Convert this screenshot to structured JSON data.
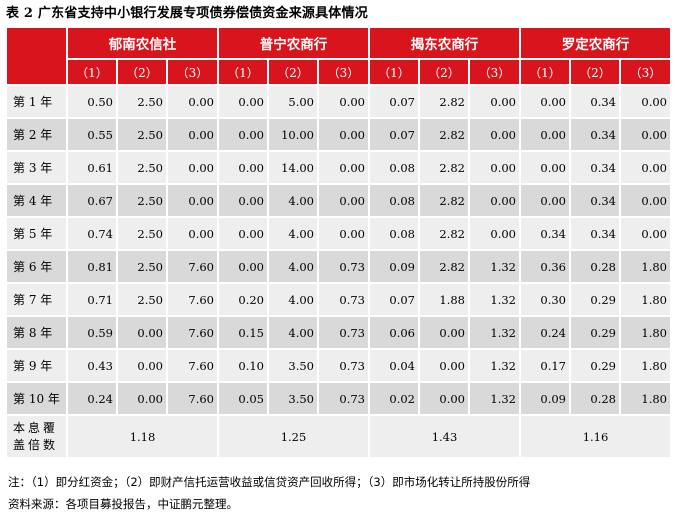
{
  "title": "表 2 广东省支持中小银行发展专项债券偿债资金来源具体情况",
  "banks": [
    "郁南农信社",
    "普宁农商行",
    "揭东农商行",
    "罗定农商行"
  ],
  "sub_headers": [
    "（1）",
    "（2）",
    "（3）"
  ],
  "rows": [
    {
      "label": "第 1 年",
      "values": [
        "0.50",
        "2.50",
        "0.00",
        "0.00",
        "5.00",
        "0.00",
        "0.07",
        "2.82",
        "0.00",
        "0.00",
        "0.34",
        "0.00"
      ]
    },
    {
      "label": "第 2 年",
      "values": [
        "0.55",
        "2.50",
        "0.00",
        "0.00",
        "10.00",
        "0.00",
        "0.07",
        "2.82",
        "0.00",
        "0.00",
        "0.34",
        "0.00"
      ]
    },
    {
      "label": "第 3 年",
      "values": [
        "0.61",
        "2.50",
        "0.00",
        "0.00",
        "14.00",
        "0.00",
        "0.08",
        "2.82",
        "0.00",
        "0.00",
        "0.34",
        "0.00"
      ]
    },
    {
      "label": "第 4 年",
      "values": [
        "0.67",
        "2.50",
        "0.00",
        "0.00",
        "4.00",
        "0.00",
        "0.08",
        "2.82",
        "0.00",
        "0.00",
        "0.34",
        "0.00"
      ]
    },
    {
      "label": "第 5 年",
      "values": [
        "0.74",
        "2.50",
        "0.00",
        "0.00",
        "4.00",
        "0.00",
        "0.08",
        "2.82",
        "0.00",
        "0.34",
        "0.34",
        "0.00"
      ]
    },
    {
      "label": "第 6 年",
      "values": [
        "0.81",
        "2.50",
        "7.60",
        "0.00",
        "4.00",
        "0.73",
        "0.09",
        "2.82",
        "1.32",
        "0.36",
        "0.28",
        "1.80"
      ]
    },
    {
      "label": "第 7 年",
      "values": [
        "0.71",
        "2.50",
        "7.60",
        "0.20",
        "4.00",
        "0.73",
        "0.07",
        "1.88",
        "1.32",
        "0.30",
        "0.29",
        "1.80"
      ]
    },
    {
      "label": "第 8 年",
      "values": [
        "0.59",
        "0.00",
        "7.60",
        "0.15",
        "4.00",
        "0.73",
        "0.06",
        "0.00",
        "1.32",
        "0.24",
        "0.29",
        "1.80"
      ]
    },
    {
      "label": "第 9 年",
      "values": [
        "0.43",
        "0.00",
        "7.60",
        "0.10",
        "3.50",
        "0.73",
        "0.04",
        "0.00",
        "1.32",
        "0.17",
        "0.29",
        "1.80"
      ]
    },
    {
      "label": "第 10 年",
      "values": [
        "0.24",
        "0.00",
        "7.60",
        "0.05",
        "3.50",
        "0.73",
        "0.02",
        "0.00",
        "1.32",
        "0.09",
        "0.28",
        "1.80"
      ]
    }
  ],
  "coverage": {
    "label": "本息覆盖倍数",
    "values": [
      "1.18",
      "1.25",
      "1.43",
      "1.16"
    ]
  },
  "note": "注：（1）即分红资金；（2）即财产信托运营收益或信贷资产回收所得；（3）即市场化转让所持股份所得",
  "source": "资料来源：各项目募投报告，中证鹏元整理。",
  "colors": {
    "header_red": "#d8151d",
    "row_light": "#eeeeee",
    "row_dark": "#d9d9d9"
  }
}
